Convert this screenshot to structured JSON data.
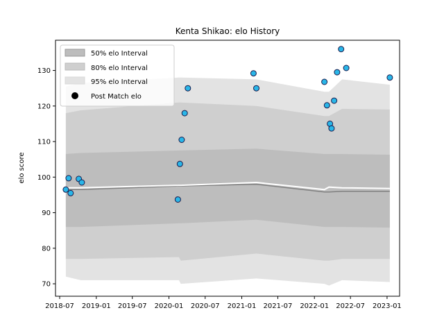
{
  "chart_data": {
    "type": "line",
    "title": "Kenta Shikao: elo History",
    "ylabel": "elo score",
    "xlabel": "",
    "ylim": [
      66.5,
      138.5
    ],
    "xlim": [
      "2018-06-10",
      "2023-03-05"
    ],
    "grid": false,
    "legend_position": "top-left",
    "legend": {
      "interval50": "50% elo Interval",
      "interval80": "80% elo Interval",
      "interval95": "95% elo Interval",
      "points": "Post Match elo"
    },
    "x_ticks": [
      "2018-07",
      "2019-01",
      "2019-07",
      "2020-01",
      "2020-07",
      "2021-01",
      "2021-07",
      "2022-01",
      "2022-07",
      "2023-01"
    ],
    "y_ticks": [
      70,
      80,
      90,
      100,
      110,
      120,
      130
    ],
    "bands": {
      "x": [
        "2018-08-01",
        "2018-10-15",
        "2020-02-20",
        "2020-03-01",
        "2021-03-15",
        "2022-02-20",
        "2022-03-15",
        "2022-05-20",
        "2023-01-15"
      ],
      "p95_upper": [
        125.5,
        126.5,
        128.0,
        128.0,
        127.5,
        124.0,
        124.0,
        127.5,
        126.0
      ],
      "p80_upper": [
        118.0,
        118.8,
        121.0,
        121.0,
        120.0,
        117.2,
        117.2,
        119.2,
        119.0
      ],
      "p50_upper": [
        106.5,
        106.8,
        107.5,
        107.5,
        108.0,
        106.5,
        106.5,
        106.5,
        106.3
      ],
      "median": [
        96.5,
        96.5,
        97.5,
        97.5,
        98.0,
        95.8,
        95.8,
        96.0,
        96.0
      ],
      "p50_lower": [
        86.0,
        86.0,
        87.0,
        87.0,
        88.0,
        86.0,
        86.0,
        86.0,
        85.8
      ],
      "p80_lower": [
        77.0,
        77.0,
        77.5,
        76.5,
        78.5,
        76.5,
        76.5,
        77.0,
        77.0
      ],
      "p95_lower": [
        72.0,
        71.0,
        71.0,
        70.0,
        71.5,
        70.0,
        69.5,
        71.0,
        70.5
      ],
      "mean_line": [
        97.0,
        97.0,
        97.7,
        97.7,
        98.5,
        96.5,
        97.2,
        97.0,
        96.8
      ]
    },
    "points": [
      {
        "x": "2018-08-01",
        "y": 96.5
      },
      {
        "x": "2018-08-15",
        "y": 99.7
      },
      {
        "x": "2018-08-25",
        "y": 95.5
      },
      {
        "x": "2018-10-05",
        "y": 99.5
      },
      {
        "x": "2018-10-20",
        "y": 98.5
      },
      {
        "x": "2020-02-15",
        "y": 93.7
      },
      {
        "x": "2020-02-25",
        "y": 103.7
      },
      {
        "x": "2020-03-05",
        "y": 110.5
      },
      {
        "x": "2020-03-20",
        "y": 118.0
      },
      {
        "x": "2020-04-05",
        "y": 125.0
      },
      {
        "x": "2021-03-01",
        "y": 129.2
      },
      {
        "x": "2021-03-15",
        "y": 125.0
      },
      {
        "x": "2022-02-20",
        "y": 126.8
      },
      {
        "x": "2022-03-05",
        "y": 120.2
      },
      {
        "x": "2022-03-20",
        "y": 115.0
      },
      {
        "x": "2022-03-28",
        "y": 113.7
      },
      {
        "x": "2022-04-10",
        "y": 121.5
      },
      {
        "x": "2022-04-25",
        "y": 129.5
      },
      {
        "x": "2022-05-15",
        "y": 136.0
      },
      {
        "x": "2022-06-10",
        "y": 130.7
      },
      {
        "x": "2023-01-15",
        "y": 128.0
      }
    ],
    "colors": {
      "band95": "#e3e3e3",
      "band80": "#cfcfcf",
      "band50": "#bdbdbd",
      "median_line": "#808080",
      "mean_line": "#ffffff",
      "point_fill": "#29b6e8",
      "point_edge": "#1a1a4a",
      "legend_marker": "#000000"
    }
  }
}
